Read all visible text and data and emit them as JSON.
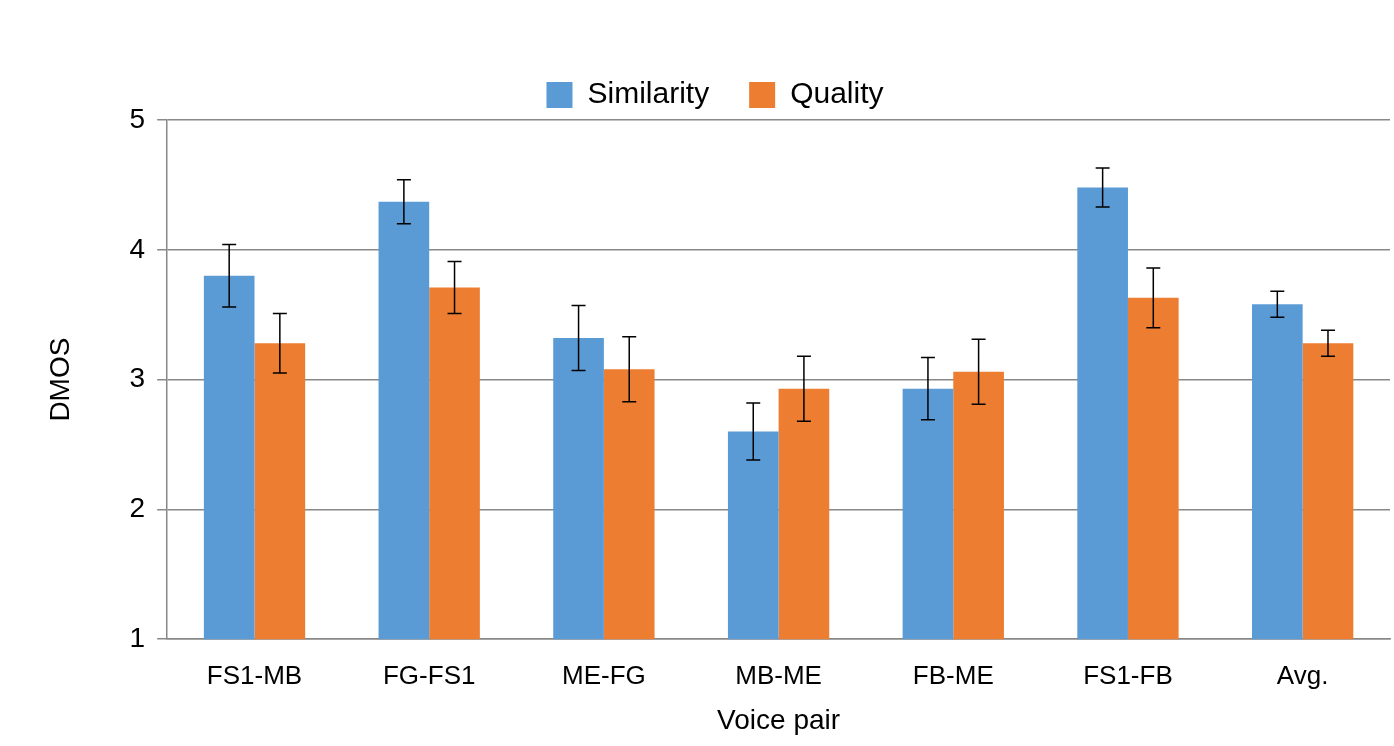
{
  "chart_data": {
    "type": "bar",
    "xlabel": "Voice pair",
    "ylabel": "DMOS",
    "categories": [
      "FS1-MB",
      "FG-FS1",
      "ME-FG",
      "MB-ME",
      "FB-ME",
      "FS1-FB",
      "Avg."
    ],
    "series": [
      {
        "name": "Similarity",
        "color": "#5b9bd5",
        "values": [
          3.8,
          4.37,
          3.32,
          2.6,
          2.93,
          4.48,
          3.58
        ],
        "errors": [
          0.24,
          0.17,
          0.25,
          0.22,
          0.24,
          0.15,
          0.1
        ]
      },
      {
        "name": "Quality",
        "color": "#ed7d31",
        "values": [
          3.28,
          3.71,
          3.08,
          2.93,
          3.06,
          3.63,
          3.28
        ],
        "errors": [
          0.23,
          0.2,
          0.25,
          0.25,
          0.25,
          0.23,
          0.1
        ]
      }
    ],
    "ylim": [
      1,
      5
    ],
    "yticks": [
      1,
      2,
      3,
      4,
      5
    ],
    "grid": "y",
    "legend": "top"
  }
}
